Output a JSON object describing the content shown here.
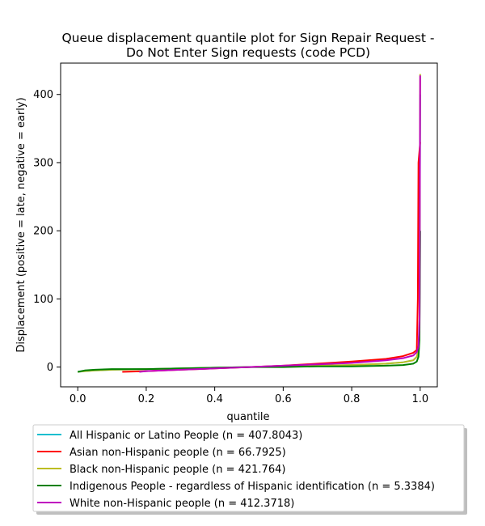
{
  "chart_data": {
    "type": "line",
    "title": [
      "Queue displacement quantile plot for Sign Repair Request -",
      "Do Not Enter Sign  requests (code PCD)"
    ],
    "xlabel": "quantile",
    "ylabel": "Displacement (positive = late, negative = early)",
    "xlim": [
      -0.05,
      1.05
    ],
    "ylim": [
      -29,
      446
    ],
    "xticks": [
      0.0,
      0.2,
      0.4,
      0.6,
      0.8,
      1.0
    ],
    "xtick_labels": [
      "0.0",
      "0.2",
      "0.4",
      "0.6",
      "0.8",
      "1.0"
    ],
    "yticks": [
      0,
      100,
      200,
      300,
      400
    ],
    "ytick_labels": [
      "0",
      "100",
      "200",
      "300",
      "400"
    ],
    "grid": false,
    "legend_position": "below",
    "series": [
      {
        "name": "All Hispanic or Latino People (n = 407.8043)",
        "color": "#17becf",
        "x": [
          0.0,
          0.02,
          0.05,
          0.1,
          0.2,
          0.3,
          0.4,
          0.5,
          0.6,
          0.7,
          0.8,
          0.9,
          0.95,
          0.98,
          0.99,
          0.995,
          0.998,
          1.0
        ],
        "y": [
          -7,
          -6,
          -5,
          -4,
          -3,
          -2,
          -1,
          0,
          1,
          2,
          3,
          5,
          7,
          10,
          15,
          25,
          60,
          400
        ]
      },
      {
        "name": "Asian non-Hispanic people (n = 66.7925)",
        "color": "#ff0000",
        "x": [
          0.13,
          0.2,
          0.3,
          0.4,
          0.5,
          0.6,
          0.7,
          0.8,
          0.9,
          0.95,
          0.98,
          0.99,
          0.993,
          0.995,
          1.0
        ],
        "y": [
          -7,
          -6,
          -4,
          -2,
          0,
          2,
          5,
          8,
          12,
          16,
          21,
          25,
          100,
          300,
          330
        ]
      },
      {
        "name": "Black non-Hispanic people (n = 421.764)",
        "color": "#bcbd22",
        "x": [
          0.0,
          0.02,
          0.05,
          0.1,
          0.2,
          0.3,
          0.4,
          0.5,
          0.6,
          0.7,
          0.8,
          0.9,
          0.95,
          0.98,
          0.99,
          0.995,
          0.998,
          1.0
        ],
        "y": [
          -7,
          -6,
          -5,
          -4,
          -3,
          -2,
          -1,
          0,
          1,
          2,
          3,
          5,
          7,
          10,
          15,
          25,
          60,
          430
        ]
      },
      {
        "name": "Indigenous People - regardless of Hispanic identification (n = 5.3384)",
        "color": "#008000",
        "x": [
          0.0,
          0.02,
          0.05,
          0.1,
          0.2,
          0.3,
          0.4,
          0.5,
          0.6,
          0.7,
          0.8,
          0.9,
          0.95,
          0.98,
          0.99,
          0.995,
          0.998,
          1.0
        ],
        "y": [
          -7,
          -5,
          -4,
          -3,
          -3,
          -2,
          -1,
          0,
          0,
          1,
          1,
          2,
          3,
          5,
          8,
          15,
          40,
          200
        ]
      },
      {
        "name": "White non-Hispanic people (n = 412.3718)",
        "color": "#bf00bf",
        "x": [
          0.18,
          0.2,
          0.3,
          0.4,
          0.5,
          0.6,
          0.7,
          0.8,
          0.9,
          0.95,
          0.98,
          0.99,
          0.995,
          0.998,
          1.0
        ],
        "y": [
          -7,
          -6,
          -4,
          -2,
          0,
          2,
          4,
          6,
          10,
          13,
          17,
          22,
          30,
          70,
          428
        ]
      }
    ]
  }
}
